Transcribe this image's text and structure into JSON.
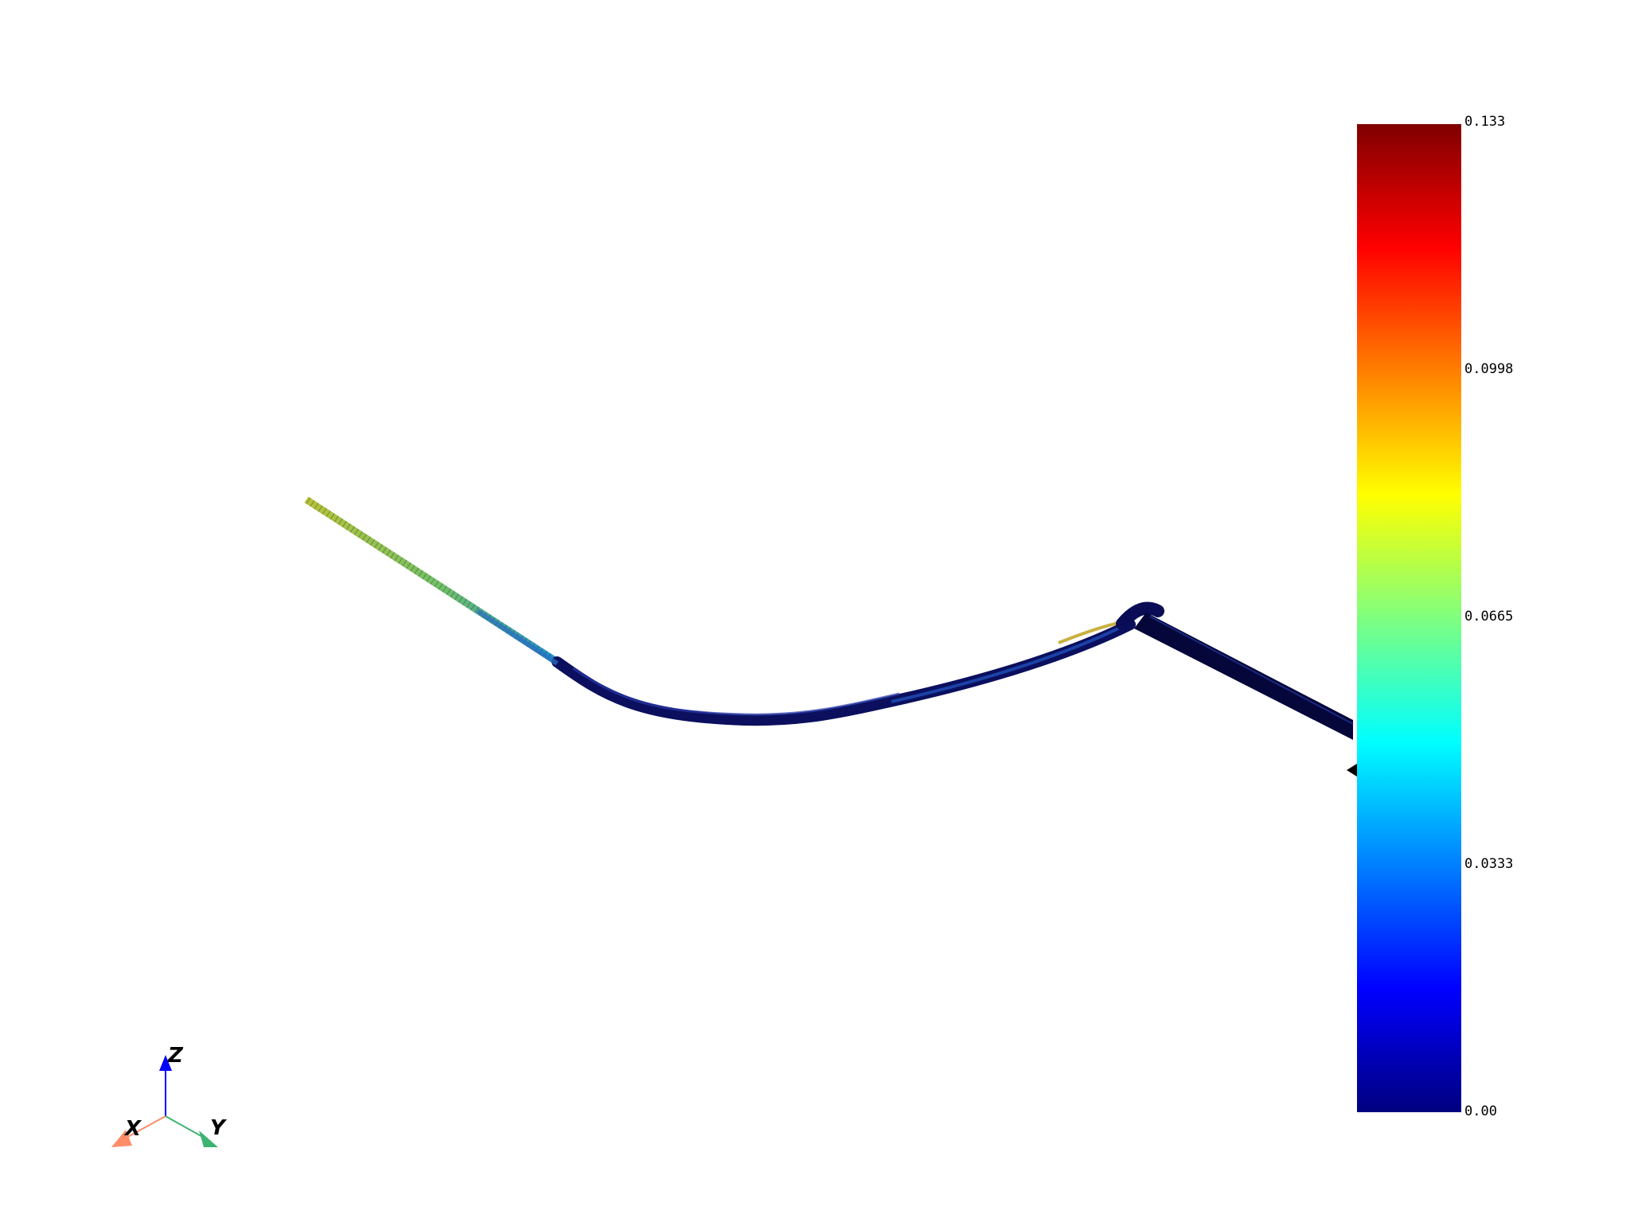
{
  "colorbar": {
    "colormap": "jet",
    "min": 0.0,
    "max": 0.133,
    "labels": [
      "0.133",
      "0.0998",
      "0.0665",
      "0.0333",
      "0.00"
    ],
    "stops": [
      "#00007f",
      "#0000ff",
      "#007fff",
      "#00ffff",
      "#7fff7f",
      "#ffff00",
      "#ff7f00",
      "#ff0000",
      "#7f0000"
    ]
  },
  "axes_triad": {
    "x_label": "X",
    "y_label": "Y",
    "z_label": "Z",
    "x_color": "#ff8c69",
    "y_color": "#3cb371",
    "z_color": "#0000ff"
  },
  "model": {
    "segments": [
      {
        "name": "thin-left-strip",
        "value": 0.085
      },
      {
        "name": "left-descending-section",
        "value": 0.04
      },
      {
        "name": "curved-trough-section",
        "value": 0.01
      },
      {
        "name": "rising-section",
        "value": 0.02
      },
      {
        "name": "apex-highlight",
        "value": 0.09
      },
      {
        "name": "right-descending-section",
        "value": 0.002
      }
    ]
  }
}
